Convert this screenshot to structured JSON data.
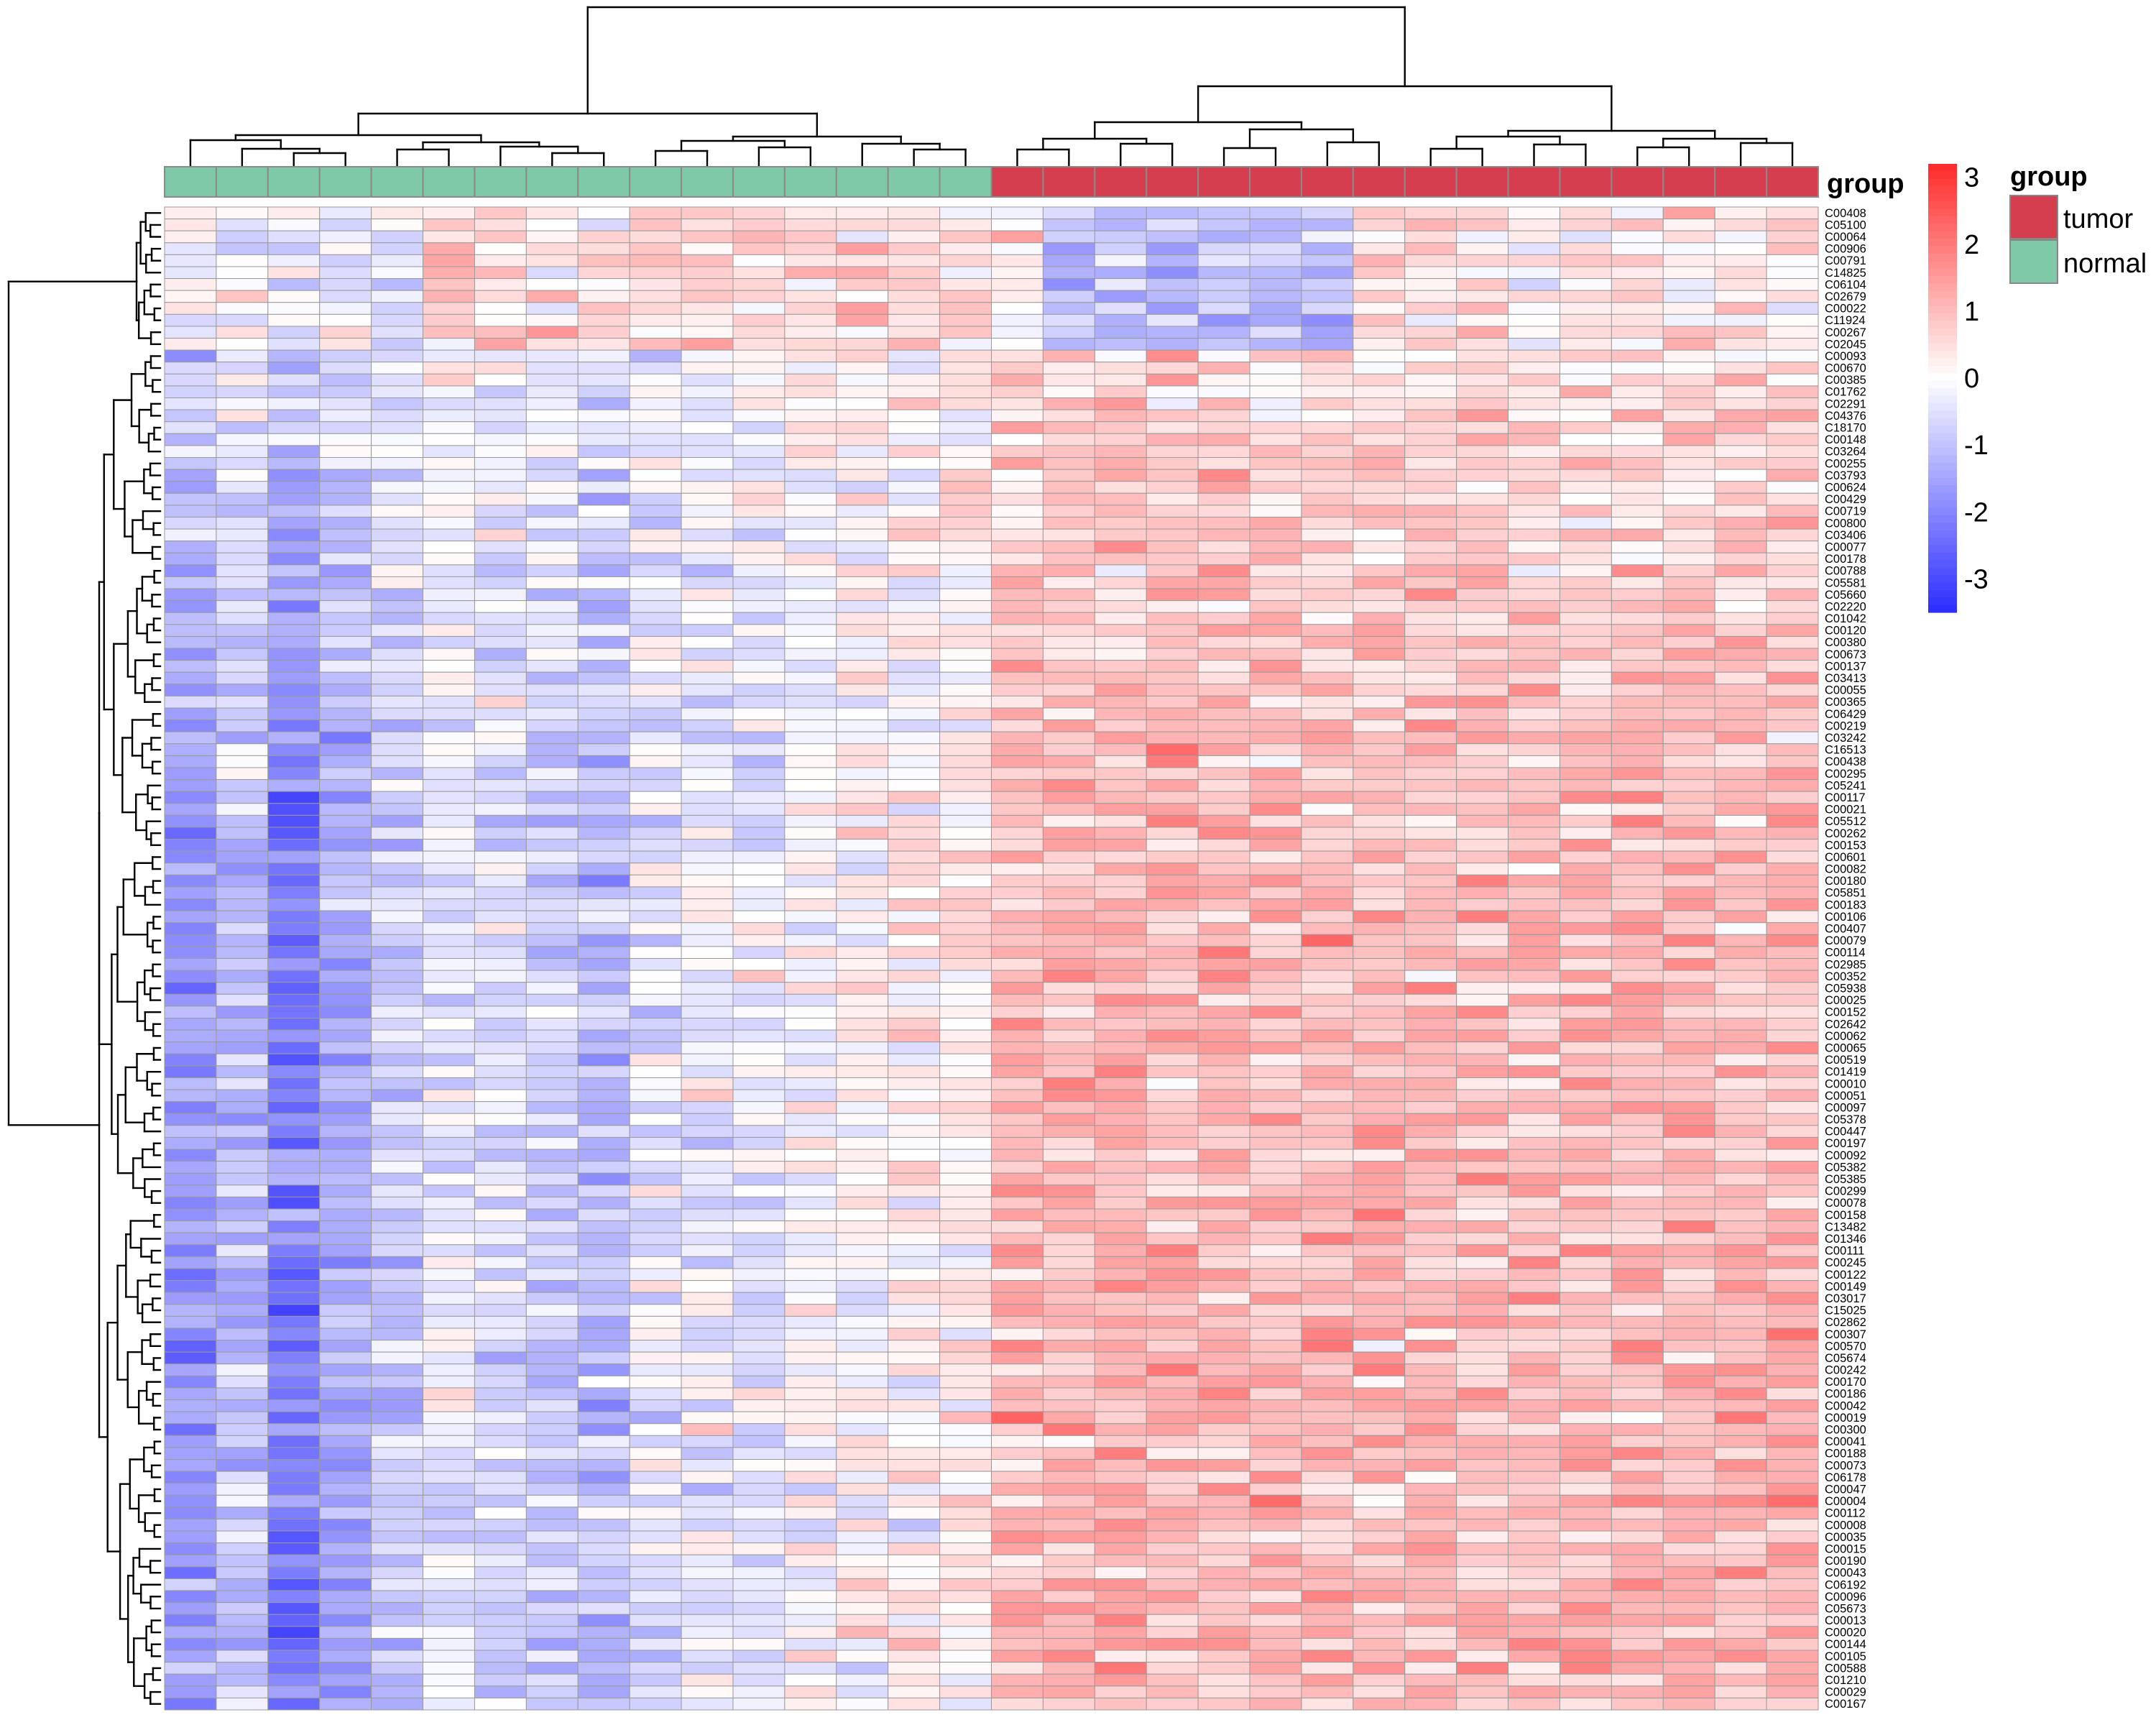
{
  "chart_data": {
    "type": "heatmap",
    "rows": [
      "C00408",
      "C05100",
      "C00064",
      "C00906",
      "C00791",
      "C14825",
      "C06104",
      "C02679",
      "C00022",
      "C11924",
      "C00267",
      "C02045",
      "C00093",
      "C00670",
      "C00385",
      "C01762",
      "C02291",
      "C04376",
      "C18170",
      "C00148",
      "C03264",
      "C00255",
      "C03793",
      "C00624",
      "C00429",
      "C00719",
      "C00800",
      "C03406",
      "C00077",
      "C00178",
      "C00788",
      "C05581",
      "C05660",
      "C02220",
      "C01042",
      "C00120",
      "C00380",
      "C00673",
      "C00137",
      "C03413",
      "C00055",
      "C00365",
      "C06429",
      "C00219",
      "C03242",
      "C16513",
      "C00438",
      "C00295",
      "C05241",
      "C00117",
      "C00021",
      "C05512",
      "C00262",
      "C00153",
      "C00601",
      "C00082",
      "C00180",
      "C05851",
      "C00183",
      "C00106",
      "C00407",
      "C00079",
      "C00114",
      "C02985",
      "C00352",
      "C05938",
      "C00025",
      "C00152",
      "C02642",
      "C00062",
      "C00065",
      "C00519",
      "C01419",
      "C00010",
      "C00051",
      "C00097",
      "C05378",
      "C00447",
      "C00197",
      "C00092",
      "C05382",
      "C05385",
      "C00299",
      "C00078",
      "C00158",
      "C13482",
      "C01346",
      "C00111",
      "C00245",
      "C00122",
      "C00149",
      "C03017",
      "C15025",
      "C02862",
      "C00307",
      "C00570",
      "C05674",
      "C00242",
      "C00170",
      "C00186",
      "C00042",
      "C00019",
      "C00300",
      "C00041",
      "C00188",
      "C00073",
      "C06178",
      "C00047",
      "C00004",
      "C00112",
      "C00008",
      "C00035",
      "C00015",
      "C00190",
      "C00043",
      "C06192",
      "C00096",
      "C05673",
      "C00013",
      "C00020",
      "C00144",
      "C00105",
      "C00588",
      "C01210",
      "C00029",
      "C00167"
    ],
    "column_groups": [
      "normal",
      "normal",
      "normal",
      "normal",
      "normal",
      "normal",
      "normal",
      "normal",
      "normal",
      "normal",
      "normal",
      "normal",
      "normal",
      "normal",
      "normal",
      "normal",
      "tumor",
      "tumor",
      "tumor",
      "tumor",
      "tumor",
      "tumor",
      "tumor",
      "tumor",
      "tumor",
      "tumor",
      "tumor",
      "tumor",
      "tumor",
      "tumor",
      "tumor",
      "tumor"
    ],
    "annotation_title": "group",
    "legend": {
      "title": "group",
      "items": [
        {
          "label": "tumor",
          "color": "#D53E4F"
        },
        {
          "label": "normal",
          "color": "#7FC9A8"
        }
      ]
    },
    "colorbar": {
      "range": [
        -3.5,
        3.2
      ],
      "ticks": [
        3,
        2,
        1,
        0,
        -1,
        -2,
        -3
      ],
      "tick_labels": [
        "3",
        "2",
        "1",
        "0",
        "-1",
        "-2",
        "-3"
      ],
      "low_color": "#2C2CFF",
      "mid_color": "#FFFFFF",
      "high_color": "#FF2A2A"
    },
    "row_dendrogram": true,
    "column_dendrogram": true,
    "values_note": "z-scored abundance per metabolite; normal columns mostly negative (blue), tumor columns mostly positive (red)"
  }
}
